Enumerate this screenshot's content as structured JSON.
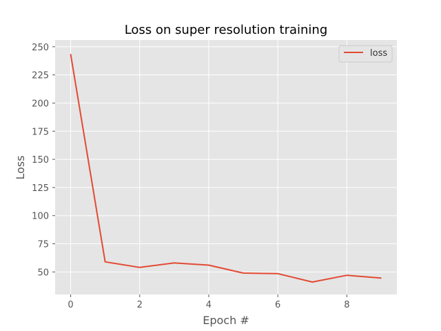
{
  "chart_data": {
    "type": "line",
    "title": "Loss on super resolution training",
    "xlabel": "Epoch #",
    "ylabel": "Loss",
    "x": [
      0,
      1,
      2,
      3,
      4,
      5,
      6,
      7,
      8,
      9
    ],
    "series": [
      {
        "name": "loss",
        "values": [
          243.5,
          59,
          54,
          58,
          56,
          49,
          48.5,
          41,
          47,
          44.5
        ],
        "color": "#e24a33"
      }
    ],
    "xlim": [
      -0.45,
      9.45
    ],
    "ylim": [
      30,
      256
    ],
    "x_ticks": [
      0,
      2,
      4,
      6,
      8
    ],
    "y_ticks": [
      50,
      75,
      100,
      125,
      150,
      175,
      200,
      225,
      250
    ],
    "grid": true,
    "legend_position": "top-right",
    "colors": {
      "plot_background": "#e5e5e5",
      "grid": "#ffffff",
      "text": "#555555"
    }
  }
}
